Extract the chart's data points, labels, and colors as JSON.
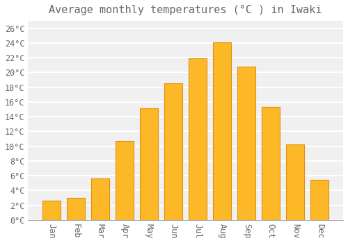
{
  "title": "Average monthly temperatures (°C ) in Iwaki",
  "months": [
    "Jan",
    "Feb",
    "Mar",
    "Apr",
    "May",
    "Jun",
    "Jul",
    "Aug",
    "Sep",
    "Oct",
    "Nov",
    "Dec"
  ],
  "values": [
    2.6,
    3.0,
    5.6,
    10.7,
    15.1,
    18.5,
    21.9,
    24.1,
    20.8,
    15.3,
    10.2,
    5.4
  ],
  "bar_color": "#FDB827",
  "bar_edge_color": "#E09010",
  "background_color": "#ffffff",
  "plot_bg_color": "#f0f0f0",
  "grid_color": "#ffffff",
  "text_color": "#666666",
  "ylim": [
    0,
    27
  ],
  "yticks": [
    0,
    2,
    4,
    6,
    8,
    10,
    12,
    14,
    16,
    18,
    20,
    22,
    24,
    26
  ],
  "title_fontsize": 11,
  "tick_fontsize": 8.5
}
